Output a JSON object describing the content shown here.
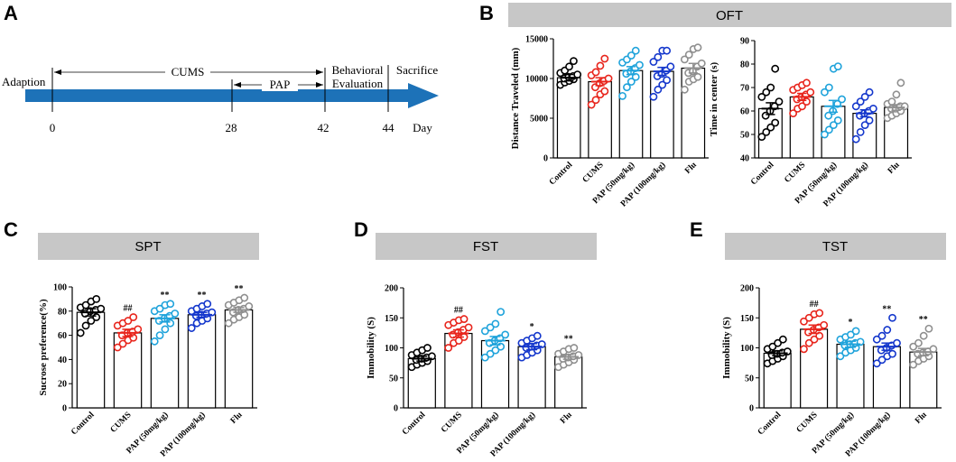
{
  "panel_letters": {
    "a": "A",
    "b": "B",
    "c": "C",
    "d": "D",
    "e": "E"
  },
  "colors": {
    "black": "#000000",
    "red": "#e8251c",
    "cyan": "#1fa3db",
    "blue": "#1437cc",
    "grey": "#8f8f8f",
    "banner": "#c7c7c7",
    "arrow": "#1d72b8"
  },
  "timeline": {
    "adaption": "Adaption",
    "cums": "CUMS",
    "pap": "PAP",
    "behavioral": "Behavioral",
    "evaluation": "Evaluation",
    "sacrifice": "Sacrifice",
    "day": "Day",
    "ticks": [
      "0",
      "28",
      "42",
      "44"
    ]
  },
  "banners": {
    "oft": "OFT",
    "spt": "SPT",
    "fst": "FST",
    "tst": "TST"
  },
  "chart_data": [
    {
      "id": "oft_distance",
      "panel": "B",
      "type": "bar",
      "ylabel": "Distance Traveled (mm)",
      "ylim": [
        0,
        15000
      ],
      "yticks": [
        0,
        5000,
        10000,
        15000
      ],
      "categories": [
        "Control",
        "CUMS",
        "PAP (50mg/kg)",
        "PAP (100mg/kg)",
        "Flu"
      ],
      "values": [
        10100,
        9600,
        11000,
        10900,
        11300
      ],
      "sem": [
        400,
        500,
        500,
        500,
        600
      ],
      "significance": [
        "",
        "",
        "",
        "",
        ""
      ],
      "points": [
        [
          9200,
          9500,
          9700,
          9900,
          10000,
          10200,
          10300,
          10500,
          10700,
          11000,
          11500,
          12200
        ],
        [
          6700,
          7300,
          8000,
          8400,
          8900,
          9400,
          9700,
          10000,
          10400,
          10800,
          11600,
          12500
        ],
        [
          7800,
          8900,
          9600,
          10200,
          10600,
          10900,
          11300,
          11700,
          12000,
          12400,
          12900,
          13500
        ],
        [
          7700,
          8600,
          9200,
          9800,
          10300,
          10600,
          11000,
          11500,
          12100,
          12700,
          13500,
          13500
        ],
        [
          8600,
          9600,
          9900,
          10200,
          10700,
          10900,
          11500,
          11900,
          12400,
          13000,
          13700,
          13900
        ]
      ]
    },
    {
      "id": "oft_center",
      "panel": "B",
      "type": "bar",
      "ylabel": "Time in center (s)",
      "ylim": [
        40,
        90
      ],
      "yticks": [
        40,
        50,
        60,
        70,
        80,
        90
      ],
      "categories": [
        "Control",
        "CUMS",
        "PAP (50mg/kg)",
        "PAP (100mg/kg)",
        "Flu"
      ],
      "values": [
        61,
        66,
        62,
        59,
        61.5
      ],
      "sem": [
        2.5,
        1.5,
        2.5,
        1.5,
        1.2
      ],
      "significance": [
        "",
        "",
        "",
        "",
        ""
      ],
      "points": [
        [
          49,
          51,
          53,
          55,
          58,
          60,
          62,
          64,
          66,
          68,
          70,
          78
        ],
        [
          59,
          61,
          62,
          64,
          65,
          66,
          67,
          68,
          69,
          70,
          71,
          72
        ],
        [
          50,
          52,
          54,
          56,
          58,
          60,
          63,
          65,
          68,
          70,
          78,
          79
        ],
        [
          48,
          51,
          54,
          56,
          58,
          59,
          60,
          61,
          62,
          64,
          66,
          68
        ],
        [
          57,
          58,
          59,
          60,
          61,
          61,
          62,
          62,
          63,
          64,
          67,
          72
        ]
      ]
    },
    {
      "id": "spt",
      "panel": "C",
      "type": "bar",
      "ylabel": "Sucrose preference(%)",
      "ylim": [
        0,
        100
      ],
      "yticks": [
        0,
        20,
        40,
        60,
        80,
        100
      ],
      "categories": [
        "Control",
        "CUMS",
        "PAP (50mg/kg)",
        "PAP (100mg/kg)",
        "Flu"
      ],
      "values": [
        79,
        62,
        74,
        77,
        81
      ],
      "sem": [
        3,
        3,
        3,
        2,
        2
      ],
      "significance": [
        "",
        "##",
        "**",
        "**",
        "**"
      ],
      "points": [
        [
          62,
          68,
          72,
          75,
          78,
          80,
          81,
          82,
          83,
          85,
          88,
          90
        ],
        [
          50,
          53,
          56,
          58,
          60,
          62,
          63,
          65,
          68,
          70,
          72,
          75
        ],
        [
          55,
          60,
          65,
          70,
          72,
          74,
          76,
          78,
          80,
          82,
          85,
          86
        ],
        [
          66,
          70,
          72,
          74,
          76,
          77,
          78,
          79,
          80,
          82,
          84,
          86
        ],
        [
          70,
          73,
          75,
          77,
          79,
          81,
          82,
          84,
          85,
          87,
          89,
          91
        ]
      ]
    },
    {
      "id": "fst",
      "panel": "D",
      "type": "bar",
      "ylabel": "Immobility (S)",
      "ylim": [
        0,
        200
      ],
      "yticks": [
        0,
        50,
        100,
        150,
        200
      ],
      "categories": [
        "Control",
        "CUMS",
        "PAP (50mg/kg)",
        "PAP (100mg/kg)",
        "Flu"
      ],
      "values": [
        82,
        124,
        112,
        102,
        85
      ],
      "sem": [
        4,
        6,
        7,
        5,
        4
      ],
      "significance": [
        "",
        "##",
        "",
        "*",
        "**"
      ],
      "points": [
        [
          68,
          72,
          75,
          78,
          80,
          82,
          84,
          86,
          88,
          92,
          96,
          100
        ],
        [
          100,
          108,
          112,
          118,
          122,
          126,
          130,
          134,
          138,
          142,
          146,
          148
        ],
        [
          84,
          90,
          96,
          102,
          108,
          112,
          116,
          122,
          128,
          134,
          140,
          160
        ],
        [
          84,
          88,
          92,
          96,
          100,
          102,
          104,
          106,
          108,
          112,
          116,
          120
        ],
        [
          68,
          72,
          76,
          80,
          82,
          84,
          86,
          88,
          90,
          94,
          98,
          100
        ]
      ]
    },
    {
      "id": "tst",
      "panel": "E",
      "type": "bar",
      "ylabel": "Immobility (S)",
      "ylim": [
        0,
        200
      ],
      "yticks": [
        0,
        50,
        100,
        150,
        200
      ],
      "categories": [
        "Control",
        "CUMS",
        "PAP (50mg/kg)",
        "PAP (100mg/kg)",
        "Flu"
      ],
      "values": [
        91,
        131,
        106,
        102,
        93
      ],
      "sem": [
        4,
        7,
        5,
        6,
        6
      ],
      "significance": [
        "",
        "##",
        "*",
        "**",
        "**"
      ],
      "points": [
        [
          74,
          78,
          82,
          86,
          88,
          90,
          92,
          94,
          98,
          102,
          108,
          114
        ],
        [
          98,
          108,
          114,
          120,
          126,
          130,
          134,
          138,
          144,
          150,
          156,
          158
        ],
        [
          86,
          92,
          96,
          100,
          104,
          106,
          108,
          110,
          114,
          118,
          122,
          128
        ],
        [
          74,
          80,
          86,
          90,
          96,
          100,
          104,
          108,
          114,
          120,
          130,
          150
        ],
        [
          72,
          78,
          82,
          86,
          90,
          92,
          94,
          98,
          102,
          108,
          120,
          132
        ]
      ]
    }
  ]
}
